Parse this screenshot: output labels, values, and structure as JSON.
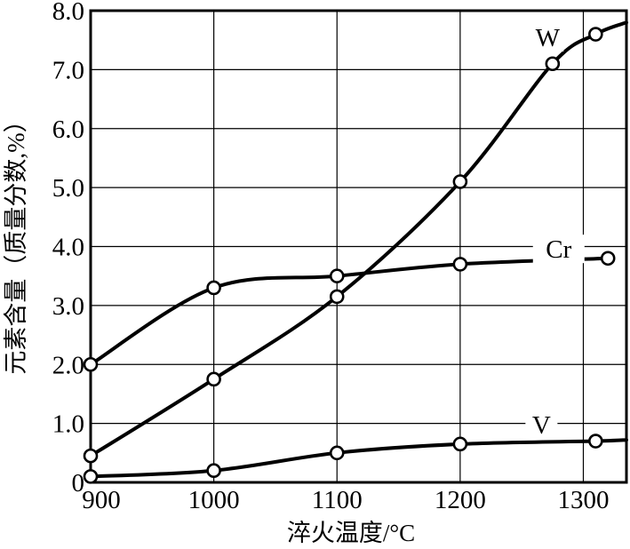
{
  "chart_data": {
    "type": "line",
    "title": "",
    "xlabel": "淬火温度/°C",
    "ylabel": "元素含量（质量分数,%）",
    "x_range": [
      900,
      1335
    ],
    "y_range": [
      0,
      8
    ],
    "grid": true,
    "legend_position": "inline-labels",
    "background_color": "#ffffff",
    "line_color": "#000000",
    "marker": "open-circle",
    "x_ticks": [
      {
        "value": 900,
        "label": "900"
      },
      {
        "value": 1000,
        "label": "1000"
      },
      {
        "value": 1100,
        "label": "1100"
      },
      {
        "value": 1200,
        "label": "1200"
      },
      {
        "value": 1300,
        "label": "1300"
      }
    ],
    "y_ticks": [
      {
        "value": 0,
        "label": "0"
      },
      {
        "value": 1,
        "label": "1.0"
      },
      {
        "value": 2,
        "label": "2.0"
      },
      {
        "value": 3,
        "label": "3.0"
      },
      {
        "value": 4,
        "label": "4.0"
      },
      {
        "value": 5,
        "label": "5.0"
      },
      {
        "value": 6,
        "label": "6.0"
      },
      {
        "value": 7,
        "label": "7.0"
      },
      {
        "value": 8,
        "label": "8.0"
      }
    ],
    "series": [
      {
        "name": "W",
        "points": [
          [
            900,
            0.45
          ],
          [
            1000,
            1.75
          ],
          [
            1100,
            3.15
          ],
          [
            1200,
            5.1
          ],
          [
            1275,
            7.1
          ],
          [
            1310,
            7.6
          ]
        ],
        "extend_to": [
          1335,
          7.8
        ],
        "label_pos": [
          1271,
          7.55
        ]
      },
      {
        "name": "Cr",
        "points": [
          [
            900,
            2.0
          ],
          [
            1000,
            3.3
          ],
          [
            1100,
            3.5
          ],
          [
            1200,
            3.7
          ],
          [
            1320,
            3.8
          ]
        ],
        "extend_to": null,
        "label_pos": [
          1280,
          3.96
        ]
      },
      {
        "name": "V",
        "points": [
          [
            900,
            0.1
          ],
          [
            1000,
            0.2
          ],
          [
            1100,
            0.5
          ],
          [
            1200,
            0.65
          ],
          [
            1310,
            0.7
          ]
        ],
        "extend_to": [
          1335,
          0.72
        ],
        "label_pos": [
          1266,
          0.98
        ]
      }
    ]
  }
}
